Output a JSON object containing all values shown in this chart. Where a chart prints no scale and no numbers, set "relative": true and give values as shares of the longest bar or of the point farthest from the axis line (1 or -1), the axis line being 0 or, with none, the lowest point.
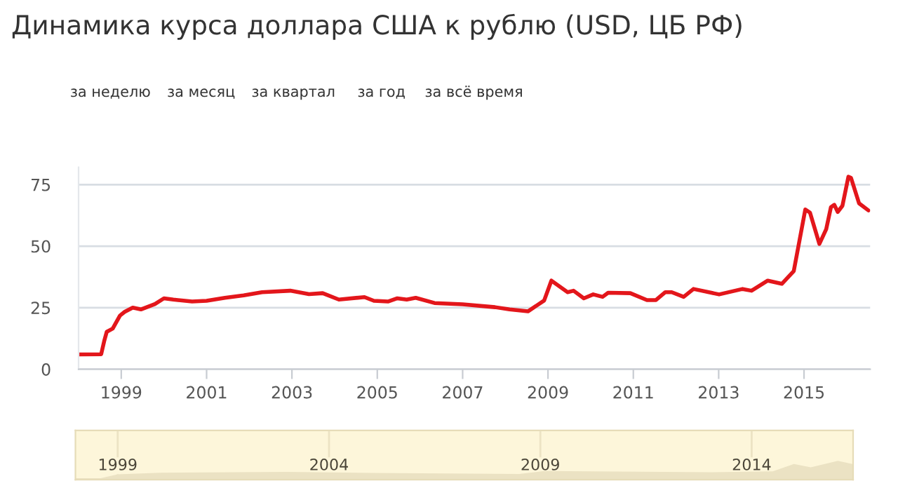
{
  "chart_data": [
    {
      "type": "line",
      "title": "Динамика курса доллара США к рублю (USD, ЦБ РФ)",
      "annotations": [
        "за неделю",
        "за месяц",
        "за квартал",
        "за год",
        "за всё время"
      ],
      "series": [
        {
          "color": "#e3161b",
          "x": [
            1998.0,
            1998.53,
            1998.6,
            1998.66,
            1998.8,
            1998.97,
            1999.08,
            1999.27,
            1999.46,
            1999.79,
            2000.0,
            2000.22,
            2000.66,
            2001.0,
            2001.43,
            2001.87,
            2002.3,
            2002.96,
            2003.4,
            2003.72,
            2004.1,
            2004.7,
            2004.92,
            2005.25,
            2005.47,
            2005.69,
            2005.9,
            2006.34,
            2007.0,
            2007.76,
            2008.1,
            2008.53,
            2008.91,
            2009.08,
            2009.46,
            2009.6,
            2009.84,
            2010.06,
            2010.28,
            2010.41,
            2010.93,
            2011.32,
            2011.53,
            2011.75,
            2011.9,
            2012.18,
            2012.41,
            2013.01,
            2013.56,
            2013.77,
            2014.15,
            2014.48,
            2014.76,
            2015.03,
            2015.14,
            2015.36,
            2015.52,
            2015.63,
            2015.71,
            2015.79,
            2015.9,
            2016.04,
            2016.1,
            2016.29,
            2016.51
          ],
          "values": [
            6.0,
            6.1,
            11.4,
            15.2,
            16.5,
            21.8,
            23.3,
            25.0,
            24.3,
            26.5,
            28.8,
            28.3,
            27.5,
            27.8,
            29.0,
            30.0,
            31.3,
            31.9,
            30.5,
            30.9,
            28.3,
            29.3,
            27.8,
            27.5,
            28.8,
            28.3,
            29.0,
            26.9,
            26.4,
            25.2,
            24.3,
            23.5,
            27.9,
            36.0,
            31.3,
            31.9,
            28.8,
            30.4,
            29.4,
            31.1,
            30.9,
            28.1,
            28.1,
            31.3,
            31.3,
            29.4,
            32.6,
            30.4,
            32.6,
            31.9,
            36.0,
            34.7,
            39.9,
            64.9,
            63.6,
            50.9,
            56.9,
            65.8,
            66.8,
            63.9,
            66.4,
            78.2,
            77.8,
            67.4,
            64.5
          ]
        }
      ],
      "xlim": [
        1998.0,
        2016.55
      ],
      "xticks": [
        1999,
        2001,
        2003,
        2005,
        2007,
        2009,
        2011,
        2013,
        2015
      ],
      "ylim": [
        0,
        82
      ],
      "yticks": [
        0,
        25,
        50,
        75
      ],
      "grid": "y",
      "line_style": "solid"
    },
    {
      "type": "area",
      "relative": true,
      "tick_labels": "x",
      "series": [
        {
          "color": "#ebe2c3",
          "x": [
            1998.0,
            1998.6,
            1999.0,
            2000.0,
            2003.0,
            2005.0,
            2008.5,
            2009.1,
            2013.0,
            2014.5,
            2015.0,
            2015.4,
            2016.04,
            2016.4
          ],
          "values": [
            0.08,
            0.08,
            0.28,
            0.37,
            0.41,
            0.36,
            0.3,
            0.46,
            0.39,
            0.44,
            0.83,
            0.65,
            1.0,
            0.82
          ]
        }
      ],
      "xlim": [
        1998.0,
        2016.4
      ],
      "xticks": [
        1999,
        2004,
        2009,
        2014
      ],
      "grid": "x"
    }
  ]
}
